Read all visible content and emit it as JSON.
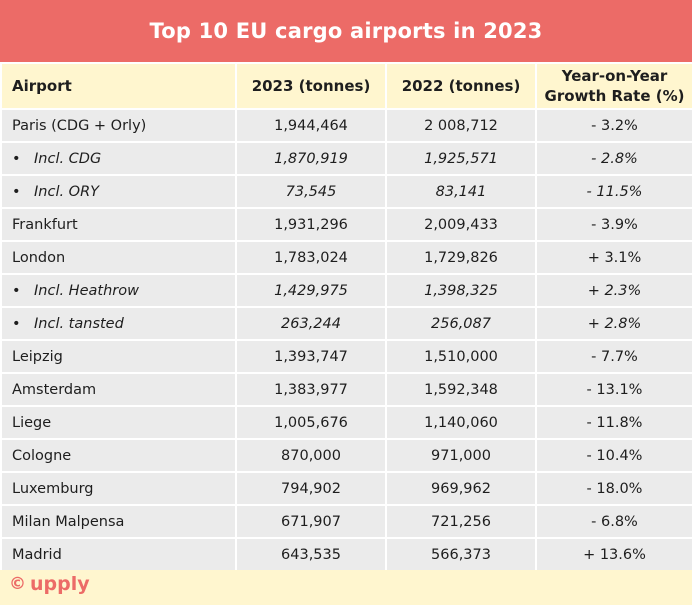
{
  "chart_data": {
    "type": "table",
    "title": "Top 10 EU cargo airports in 2023",
    "columns": [
      "Airport",
      "2023 (tonnes)",
      "2022 (tonnes)",
      "Year-on-Year Growth Rate (%)"
    ],
    "rows": [
      {
        "airport": "Paris (CDG + Orly)",
        "y2023": "1,944,464",
        "y2022": "2 008,712",
        "growth": "- 3.2%",
        "sub": false
      },
      {
        "airport": "Incl. CDG",
        "y2023": "1,870,919",
        "y2022": "1,925,571",
        "growth": "- 2.8%",
        "sub": true
      },
      {
        "airport": "Incl. ORY",
        "y2023": "73,545",
        "y2022": "83,141",
        "growth": "- 11.5%",
        "sub": true
      },
      {
        "airport": "Frankfurt",
        "y2023": "1,931,296",
        "y2022": "2,009,433",
        "growth": "- 3.9%",
        "sub": false
      },
      {
        "airport": "London",
        "y2023": "1,783,024",
        "y2022": "1,729,826",
        "growth": "+ 3.1%",
        "sub": false
      },
      {
        "airport": "Incl. Heathrow",
        "y2023": "1,429,975",
        "y2022": "1,398,325",
        "growth": "+ 2.3%",
        "sub": true
      },
      {
        "airport": "Incl. tansted",
        "y2023": "263,244",
        "y2022": "256,087",
        "growth": "+ 2.8%",
        "sub": true
      },
      {
        "airport": "Leipzig",
        "y2023": "1,393,747",
        "y2022": "1,510,000",
        "growth": "- 7.7%",
        "sub": false
      },
      {
        "airport": "Amsterdam",
        "y2023": "1,383,977",
        "y2022": "1,592,348",
        "growth": "- 13.1%",
        "sub": false
      },
      {
        "airport": "Liege",
        "y2023": "1,005,676",
        "y2022": "1,140,060",
        "growth": "- 11.8%",
        "sub": false
      },
      {
        "airport": "Cologne",
        "y2023": "870,000",
        "y2022": "971,000",
        "growth": "- 10.4%",
        "sub": false
      },
      {
        "airport": "Luxemburg",
        "y2023": "794,902",
        "y2022": "969,962",
        "growth": "- 18.0%",
        "sub": false
      },
      {
        "airport": "Milan Malpensa",
        "y2023": "671,907",
        "y2022": "721,256",
        "growth": "- 6.8%",
        "sub": false
      },
      {
        "airport": "Madrid",
        "y2023": "643,535",
        "y2022": "566,373",
        "growth": "+ 13.6%",
        "sub": false
      }
    ]
  },
  "bullet_char": "•",
  "header": {
    "airport": "Airport",
    "y2023": "2023 (tonnes)",
    "y2022": "2022 (tonnes)",
    "growth_line1": "Year-on-Year",
    "growth_line2": "Growth Rate (%)"
  },
  "footer": {
    "logo_symbol": "©",
    "logo_text": "upply"
  },
  "colors": {
    "title_bg": "#ec6b67",
    "header_bg": "#fff6cf",
    "row_bg": "#ebebeb",
    "logo": "#ec6b67"
  }
}
